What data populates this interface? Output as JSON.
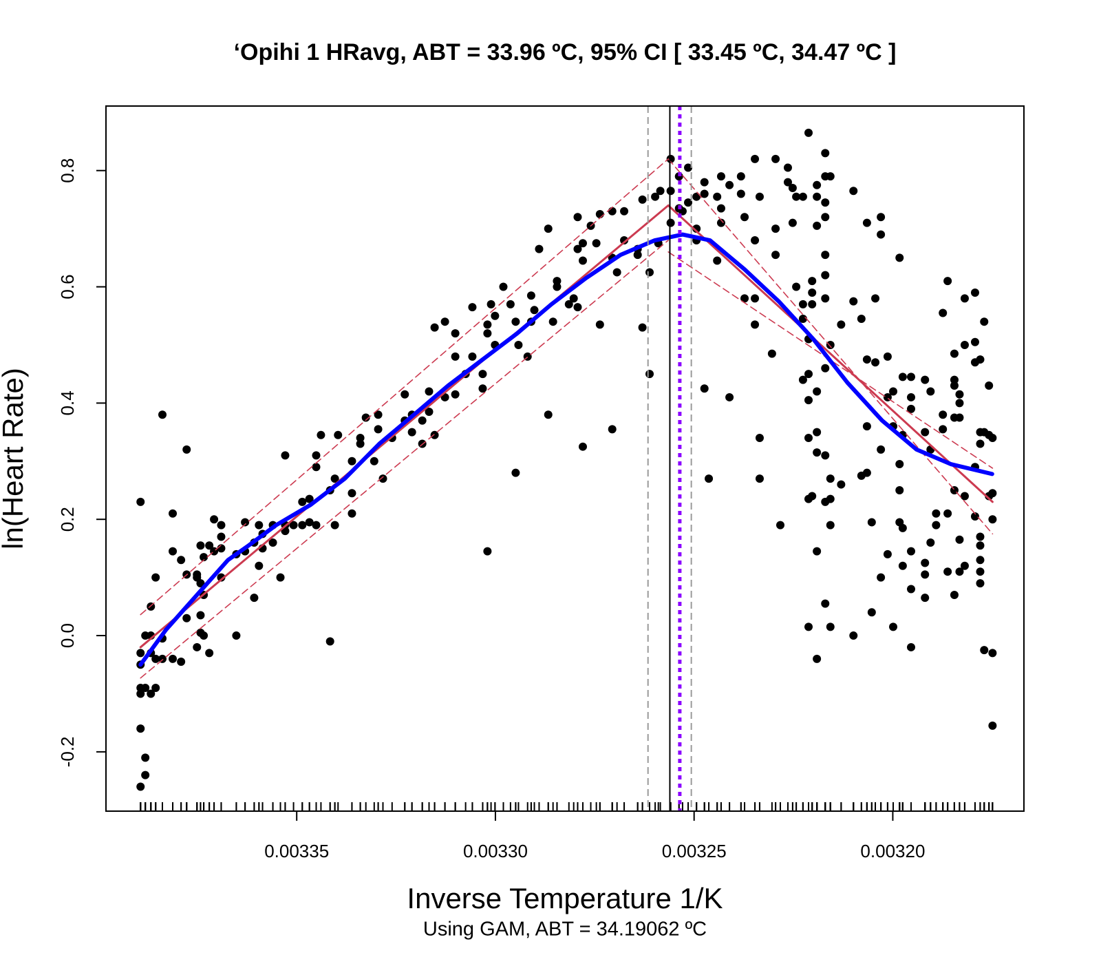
{
  "chart_data": {
    "type": "scatter",
    "title": "‘Opihi 1 HRavg, ABT =  33.96 ºC, 95% CI [ 33.45 ºC, 34.47 ºC ]",
    "xlabel": "Inverse Temperature 1/K",
    "subtitle": "Using GAM, ABT = 34.19062 ºC",
    "ylabel": "ln(Heart Rate)",
    "xlim": [
      0.003398,
      0.003167
    ],
    "ylim": [
      -0.302,
      0.911
    ],
    "xticks": [
      0.00335,
      {
        "value": 0.0033,
        "label": "0.00330"
      },
      0.00325,
      {
        "value": 0.0032,
        "label": "0.00320"
      }
    ],
    "yticks": [
      -0.2,
      {
        "value": 0,
        "label": "0.0"
      },
      0.2,
      0.4,
      0.6,
      0.8
    ],
    "grid": false,
    "rug": true,
    "points": {
      "color": "#000000",
      "x": [
        0.0033893,
        0.0033893,
        0.0033893,
        0.0033893,
        0.0033893,
        0.0033893,
        0.0033893,
        0.0033881,
        0.0033881,
        0.0033881,
        0.0033881,
        0.0033867,
        0.0033867,
        0.0033867,
        0.0033867,
        0.0033855,
        0.0033855,
        0.0033855,
        0.0033838,
        0.0033838,
        0.0033838,
        0.0033812,
        0.0033812,
        0.0033812,
        0.0033791,
        0.0033791,
        0.0033777,
        0.0033777,
        0.0033777,
        0.0033751,
        0.0033751,
        0.0033751,
        0.0033742,
        0.0033742,
        0.0033742,
        0.0033742,
        0.0033734,
        0.0033734,
        0.0033734,
        0.003372,
        0.003372,
        0.0033708,
        0.0033708,
        0.003369,
        0.003369,
        0.003369,
        0.003369,
        0.0033652,
        0.0033652,
        0.003363,
        0.003363,
        0.0033607,
        0.0033607,
        0.0033595,
        0.0033595,
        0.0033586,
        0.0033586,
        0.003356,
        0.003356,
        0.0033541,
        0.0033529,
        0.0033529,
        0.0033529,
        0.0033508,
        0.0033486,
        0.0033486,
        0.0033468,
        0.0033468,
        0.0033451,
        0.0033451,
        0.0033451,
        0.0033439,
        0.0033416,
        0.0033416,
        0.0033404,
        0.0033404,
        0.0033396,
        0.0033361,
        0.0033361,
        0.0033361,
        0.003334,
        0.003334,
        0.0033326,
        0.0033305,
        0.0033295,
        0.0033295,
        0.0033283,
        0.003326,
        0.0033228,
        0.0033228,
        0.003321,
        0.003321,
        0.0033184,
        0.0033184,
        0.0033167,
        0.0033167,
        0.0033153,
        0.0033153,
        0.0033127,
        0.0033127,
        0.0033101,
        0.0033101,
        0.0033101,
        0.0033075,
        0.0033058,
        0.0033058,
        0.0033032,
        0.0033032,
        0.003302,
        0.003302,
        0.003302,
        0.0033011,
        0.0033001,
        0.0033001,
        0.003298,
        0.0032962,
        0.0032949,
        0.0032949,
        0.0032942,
        0.0032919,
        0.003291,
        0.003291,
        0.0032902,
        0.003289,
        0.0032867,
        0.0032867,
        0.0032855,
        0.0032845,
        0.0032845,
        0.0032815,
        0.0032803,
        0.0032793,
        0.0032793,
        0.0032793,
        0.003278,
        0.003278,
        0.003278,
        0.003276,
        0.0032746,
        0.0032737,
        0.0032737,
        0.0032706,
        0.0032706,
        0.0032706,
        0.0032694,
        0.0032676,
        0.0032676,
        0.0032642,
        0.0032642,
        0.003263,
        0.003263,
        0.0032612,
        0.0032612,
        0.0032598,
        0.003259,
        0.0032585,
        0.0032559,
        0.0032559,
        0.0032559,
        0.0032538,
        0.0032538,
        0.0032529,
        0.0032515,
        0.0032515,
        0.0032494,
        0.0032494,
        0.0032494,
        0.0032474,
        0.0032474,
        0.0032474,
        0.0032463,
        0.0032442,
        0.0032442,
        0.0032432,
        0.0032432,
        0.0032432,
        0.0032411,
        0.0032411,
        0.0032382,
        0.0032382,
        0.0032373,
        0.0032373,
        0.0032347,
        0.0032347,
        0.0032347,
        0.0032347,
        0.0032335,
        0.0032335,
        0.0032335,
        0.0032304,
        0.0032295,
        0.0032295,
        0.0032295,
        0.0032283,
        0.0032264,
        0.0032264,
        0.0032252,
        0.0032252,
        0.0032243,
        0.0032243,
        0.0032226,
        0.0032226,
        0.0032226,
        0.0032226,
        0.0032212,
        0.0032212,
        0.0032212,
        0.0032212,
        0.0032212,
        0.0032212,
        0.0032212,
        0.0032203,
        0.0032203,
        0.0032203,
        0.0032203,
        0.0032191,
        0.0032191,
        0.0032191,
        0.0032191,
        0.0032191,
        0.0032191,
        0.0032191,
        0.0032191,
        0.003217,
        0.003217,
        0.003217,
        0.003217,
        0.003217,
        0.003217,
        0.003217,
        0.003217,
        0.003217,
        0.003217,
        0.003217,
        0.0032157,
        0.0032157,
        0.0032157,
        0.0032157,
        0.0032157,
        0.0032157,
        0.003213,
        0.003213,
        0.0032099,
        0.0032099,
        0.0032099,
        0.0032079,
        0.0032079,
        0.0032065,
        0.0032065,
        0.0032065,
        0.0032065,
        0.0032053,
        0.0032053,
        0.0032044,
        0.0032044,
        0.003203,
        0.003203,
        0.003203,
        0.003203,
        0.0032013,
        0.0032013,
        0.0032013,
        0.0031999,
        0.0031999,
        0.0031999,
        0.0031983,
        0.0031983,
        0.0031983,
        0.0031983,
        0.0031975,
        0.0031975,
        0.0031975,
        0.0031975,
        0.0031954,
        0.0031954,
        0.0031954,
        0.0031954,
        0.0031954,
        0.0031954,
        0.0031919,
        0.0031919,
        0.0031919,
        0.0031919,
        0.0031919,
        0.0031905,
        0.0031905,
        0.0031905,
        0.0031891,
        0.0031891,
        0.0031874,
        0.0031874,
        0.0031874,
        0.0031862,
        0.0031862,
        0.0031862,
        0.0031845,
        0.0031845,
        0.0031845,
        0.0031845,
        0.0031845,
        0.0031845,
        0.0031832,
        0.0031832,
        0.0031832,
        0.0031832,
        0.0031832,
        0.0031819,
        0.0031819,
        0.0031819,
        0.0031819,
        0.0031793,
        0.0031793,
        0.0031793,
        0.0031793,
        0.0031793,
        0.003178,
        0.003178,
        0.003178,
        0.003178,
        0.003178,
        0.003178,
        0.003178,
        0.003178,
        0.003177,
        0.003177,
        0.003177,
        0.0031758,
        0.0031758,
        0.0031758,
        0.0031749,
        0.0031749,
        0.0031749,
        0.0031749,
        0.0031749
      ],
      "values": [
        0.23,
        -0.03,
        -0.05,
        -0.09,
        -0.1,
        -0.16,
        -0.26,
        -0.21,
        -0.24,
        -0.09,
        0.0,
        0.0,
        -0.03,
        -0.1,
        0.05,
        -0.09,
        0.1,
        -0.04,
        0.38,
        -0.04,
        -0.005,
        -0.04,
        0.21,
        0.145,
        -0.045,
        0.13,
        0.32,
        0.105,
        0.03,
        0.1,
        0.105,
        -0.02,
        0.155,
        0.09,
        0.035,
        0.005,
        0.135,
        0.0,
        0.07,
        0.155,
        -0.03,
        0.2,
        0.145,
        0.17,
        0.19,
        0.15,
        0.1,
        0.0,
        0.14,
        0.195,
        0.145,
        0.065,
        0.16,
        0.19,
        0.12,
        0.15,
        0.175,
        0.19,
        0.16,
        0.1,
        0.31,
        0.18,
        0.19,
        0.19,
        0.23,
        0.19,
        0.235,
        0.195,
        0.31,
        0.29,
        0.19,
        0.345,
        -0.01,
        0.25,
        0.27,
        0.19,
        0.345,
        0.21,
        0.3,
        0.245,
        0.33,
        0.34,
        0.375,
        0.3,
        0.38,
        0.355,
        0.27,
        0.34,
        0.415,
        0.37,
        0.38,
        0.35,
        0.33,
        0.37,
        0.42,
        0.385,
        0.345,
        0.53,
        0.54,
        0.41,
        0.52,
        0.48,
        0.415,
        0.45,
        0.48,
        0.565,
        0.425,
        0.45,
        0.145,
        0.52,
        0.535,
        0.57,
        0.55,
        0.5,
        0.6,
        0.57,
        0.54,
        0.28,
        0.5,
        0.48,
        0.585,
        0.54,
        0.56,
        0.665,
        0.7,
        0.38,
        0.54,
        0.61,
        0.6,
        0.57,
        0.58,
        0.665,
        0.72,
        0.565,
        0.325,
        0.645,
        0.675,
        0.705,
        0.675,
        0.535,
        0.725,
        0.355,
        0.65,
        0.73,
        0.625,
        0.73,
        0.68,
        0.665,
        0.655,
        0.53,
        0.75,
        0.45,
        0.625,
        0.755,
        0.675,
        0.765,
        0.82,
        0.765,
        0.71,
        0.735,
        0.79,
        0.73,
        0.745,
        0.805,
        0.7,
        0.68,
        0.755,
        0.425,
        0.78,
        0.76,
        0.27,
        0.645,
        0.755,
        0.79,
        0.735,
        0.71,
        0.41,
        0.775,
        0.76,
        0.79,
        0.58,
        0.72,
        0.68,
        0.82,
        0.535,
        0.58,
        0.755,
        0.34,
        0.27,
        0.485,
        0.82,
        0.7,
        0.655,
        0.19,
        0.805,
        0.78,
        0.77,
        0.71,
        0.755,
        0.6,
        0.755,
        0.57,
        0.545,
        0.44,
        0.865,
        0.51,
        0.405,
        0.34,
        0.235,
        0.015,
        0.45,
        0.59,
        0.57,
        0.61,
        0.24,
        0.775,
        0.755,
        0.705,
        0.35,
        0.315,
        0.42,
        0.145,
        -0.04,
        0.83,
        0.79,
        0.745,
        0.72,
        0.655,
        0.62,
        0.58,
        0.46,
        0.31,
        0.23,
        0.055,
        0.79,
        0.5,
        0.27,
        0.19,
        0.235,
        0.015,
        0.535,
        0.26,
        0.765,
        0.575,
        0.0,
        0.545,
        0.275,
        0.71,
        0.475,
        0.36,
        0.28,
        0.195,
        0.04,
        0.58,
        0.47,
        0.72,
        0.69,
        0.32,
        0.1,
        0.48,
        0.41,
        0.14,
        0.015,
        0.42,
        0.36,
        0.65,
        0.25,
        0.195,
        0.295,
        0.445,
        0.345,
        0.185,
        0.12,
        0.445,
        0.41,
        0.39,
        0.08,
        0.145,
        -0.02,
        0.44,
        0.35,
        0.105,
        0.065,
        0.125,
        0.42,
        0.32,
        0.16,
        0.21,
        0.19,
        0.555,
        0.38,
        0.355,
        0.61,
        0.21,
        0.11,
        0.44,
        0.43,
        0.485,
        0.375,
        0.25,
        0.07,
        0.375,
        0.415,
        0.4,
        0.165,
        0.11,
        0.58,
        0.5,
        0.24,
        0.12,
        0.59,
        0.505,
        0.47,
        0.29,
        0.205,
        0.475,
        0.35,
        0.33,
        0.17,
        0.155,
        0.13,
        0.11,
        0.09,
        0.54,
        0.35,
        -0.025,
        0.43,
        0.345,
        0.24,
        0.34,
        0.245,
        0.2,
        -0.03,
        -0.155
      ]
    },
    "lines": [
      {
        "color": "#cc3a50",
        "dash": "dashed",
        "width": 1.6,
        "x": [
          0.0033893,
          0.0032565
        ],
        "values": [
          0.036,
          0.82
        ]
      },
      {
        "color": "#cc3a50",
        "dash": "dashed",
        "width": 1.6,
        "x": [
          0.0033893,
          0.0032565
        ],
        "values": [
          -0.073,
          0.68
        ]
      },
      {
        "color": "#cc3a50",
        "dash": "dashed",
        "width": 1.6,
        "x": [
          0.0032565,
          0.0031749
        ],
        "values": [
          0.82,
          0.175
        ]
      },
      {
        "color": "#cc3a50",
        "dash": "dashed",
        "width": 1.6,
        "x": [
          0.0032565,
          0.0031749
        ],
        "values": [
          0.66,
          0.288
        ]
      },
      {
        "color": "#cc3a50",
        "dash": "solid",
        "width": 3,
        "x": [
          0.0033893,
          0.0032565,
          0.0031749
        ],
        "values": [
          -0.02,
          0.74,
          0.23
        ]
      },
      {
        "color": "#0000ff",
        "dash": "solid",
        "width": 6,
        "x": [
          0.0033893,
          0.0033829,
          0.0033777,
          0.0033725,
          0.0033673,
          0.0033621,
          0.0033552,
          0.0033465,
          0.0033379,
          0.0033292,
          0.0033205,
          0.0033119,
          0.0033032,
          0.0032945,
          0.0032859,
          0.0032772,
          0.0032685,
          0.0032599,
          0.0032529,
          0.003246,
          0.0032373,
          0.0032287,
          0.00322,
          0.0032114,
          0.0032027,
          0.003194,
          0.0031854,
          0.003175
        ],
        "values": [
          -0.05,
          0.01,
          0.05,
          0.09,
          0.13,
          0.155,
          0.19,
          0.225,
          0.27,
          0.33,
          0.38,
          0.43,
          0.475,
          0.52,
          0.57,
          0.615,
          0.655,
          0.68,
          0.69,
          0.68,
          0.63,
          0.575,
          0.51,
          0.435,
          0.37,
          0.32,
          0.295,
          0.278
        ]
      }
    ],
    "vlines": [
      {
        "x": 0.0032616,
        "color": "#999999",
        "dash": "dashed",
        "width": 2
      },
      {
        "x": 0.0032507,
        "color": "#999999",
        "dash": "dashed",
        "width": 2
      },
      {
        "x": 0.0032561,
        "color": "#000000",
        "dash": "solid",
        "width": 2
      },
      {
        "x": 0.0032536,
        "color": "#8b00ff",
        "dash": "dotted",
        "width": 5
      }
    ]
  }
}
